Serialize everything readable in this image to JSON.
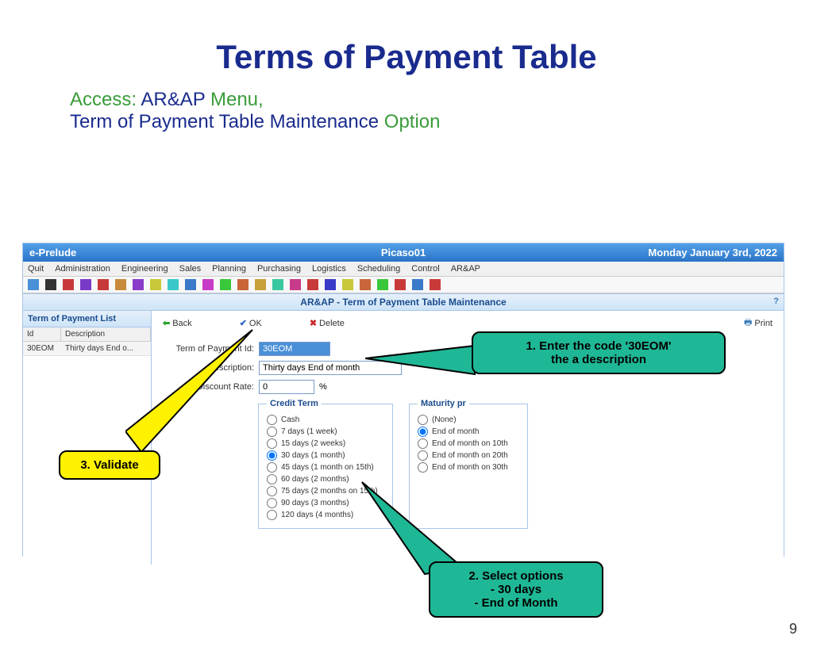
{
  "slide": {
    "title": "Terms of Payment Table",
    "access_prefix": "Access:",
    "access_menu": "AR&AP",
    "access_menu_word": "Menu,",
    "access_line2": "Term of Payment Table Maintenance",
    "access_option": "Option",
    "page_number": "9"
  },
  "app": {
    "name": "e-Prelude",
    "user": "Picaso01",
    "date": "Monday January 3rd, 2022",
    "section_title": "AR&AP - Term of Payment Table Maintenance"
  },
  "menubar": [
    "Quit",
    "Administration",
    "Engineering",
    "Sales",
    "Planning",
    "Purchasing",
    "Logistics",
    "Scheduling",
    "Control",
    "AR&AP"
  ],
  "toolbar_colors": [
    "#4a90d8",
    "#333",
    "#c83a3a",
    "#7a3ac8",
    "#c83a3a",
    "#c88a3a",
    "#8a3ac8",
    "#c8c83a",
    "#3ac8c8",
    "#3a7ac8",
    "#c83ac8",
    "#3ac83a",
    "#c8663a",
    "#c8a03a",
    "#3ac8a0",
    "#c83a8a",
    "#c83a3a",
    "#3a3ac8",
    "#c8c83a",
    "#c8663a",
    "#3ac83a",
    "#c83a3a",
    "#3a7ac8",
    "#c83a3a"
  ],
  "left_panel": {
    "title": "Term of Payment List",
    "col_id": "Id",
    "col_desc": "Description",
    "row_id": "30EOM",
    "row_desc": "Thirty days End o..."
  },
  "actions": {
    "back": "Back",
    "ok": "OK",
    "delete": "Delete",
    "print": "Print"
  },
  "form": {
    "id_label": "Term of Payment Id:",
    "id_value": "30EOM",
    "desc_label": "Description:",
    "desc_value": "Thirty days End of month",
    "rate_label": "Discount Rate:",
    "rate_value": "0",
    "rate_unit": "%"
  },
  "credit_term": {
    "legend": "Credit Term",
    "options": [
      "Cash",
      "7 days (1 week)",
      "15 days (2 weeks)",
      "30 days (1 month)",
      "45 days (1 month on 15th)",
      "60 days (2 months)",
      "75 days (2 months on 15th)",
      "90 days (3 months)",
      "120 days (4 months)"
    ],
    "selected": 3
  },
  "maturity": {
    "legend": "Maturity pr",
    "options": [
      "(None)",
      "End of month",
      "End of month on 10th",
      "End of month on 20th",
      "End of month on 30th"
    ],
    "selected": 1
  },
  "callouts": {
    "c1_l1": "1. Enter the code '30EOM'",
    "c1_l2": "the a description",
    "c2_l1": "2. Select options",
    "c2_l2": "- 30 days",
    "c2_l3": "- End of Month",
    "c3": "3. Validate"
  }
}
